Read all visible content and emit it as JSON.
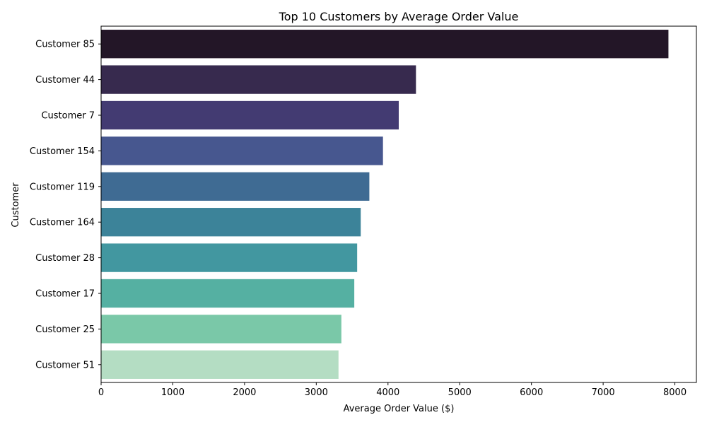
{
  "chart_data": {
    "type": "bar",
    "orientation": "horizontal",
    "title": "Top 10 Customers by Average Order Value",
    "xlabel": "Average Order Value ($)",
    "ylabel": "Customer",
    "xlim": [
      0,
      8300
    ],
    "xticks": [
      0,
      1000,
      2000,
      3000,
      4000,
      5000,
      6000,
      7000,
      8000
    ],
    "grid": false,
    "categories": [
      "Customer 85",
      "Customer 44",
      "Customer 7",
      "Customer 154",
      "Customer 119",
      "Customer 164",
      "Customer 28",
      "Customer 17",
      "Customer 25",
      "Customer 51"
    ],
    "values": [
      7910,
      4390,
      4150,
      3930,
      3740,
      3620,
      3570,
      3530,
      3350,
      3310
    ],
    "colors": [
      "#231627",
      "#372a4e",
      "#433b72",
      "#47578f",
      "#3f6b93",
      "#3c8399",
      "#4297a0",
      "#55b0a2",
      "#7ac8a8",
      "#b4ddc3"
    ]
  }
}
